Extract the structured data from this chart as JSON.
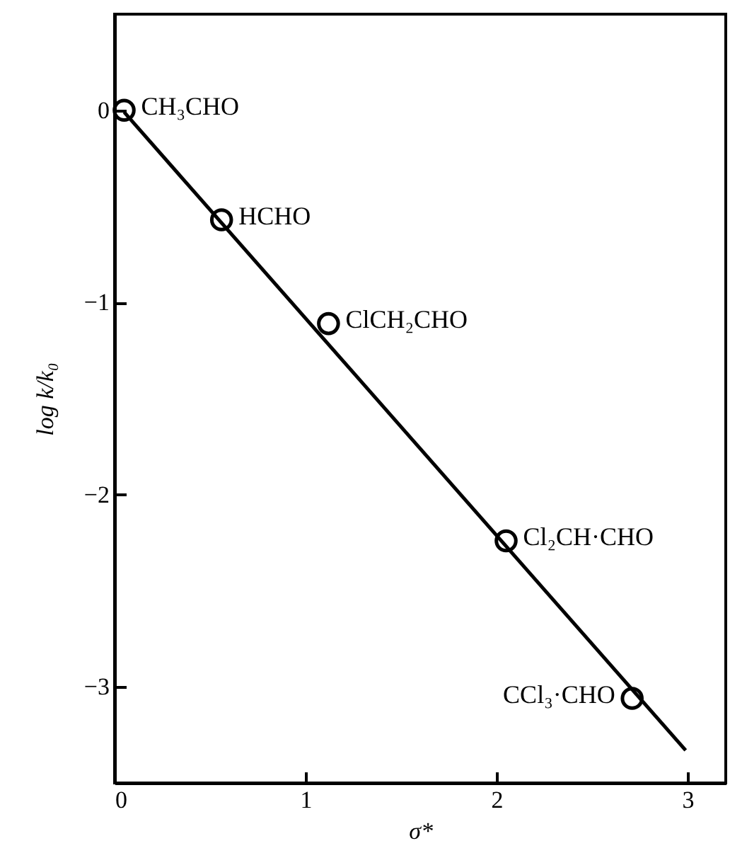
{
  "chart_data": {
    "type": "scatter",
    "xlabel": "σ*",
    "ylabel": "log k/k₀",
    "xlim": [
      0,
      3.2
    ],
    "ylim": [
      -3.5,
      0.5
    ],
    "xticks": [
      0,
      1,
      2,
      3
    ],
    "yticks": [
      0,
      -1,
      -2,
      -3
    ],
    "grid": false,
    "series": [
      {
        "color": "#000000",
        "marker": "circle",
        "x": [
          0.05,
          0.56,
          1.12,
          2.05,
          2.71
        ],
        "values": [
          0,
          -0.57,
          -1.11,
          -2.24,
          -3.06
        ]
      },
      {
        "type": "line",
        "color": "#000000",
        "line_style": "solid",
        "x": [
          0.05,
          2.99
        ],
        "values": [
          -0.01,
          -3.33
        ]
      }
    ],
    "annotations": [
      {
        "text": "CH₃CHO",
        "x": 0.05,
        "y": 0
      },
      {
        "text": "HCHO",
        "x": 0.56,
        "y": -0.57
      },
      {
        "text": "ClCH₂CHO",
        "x": 1.12,
        "y": -1.11
      },
      {
        "text": "Cl₂CH·CHO",
        "x": 2.05,
        "y": -2.24
      },
      {
        "text": "CCl₃·CHO",
        "x": 2.71,
        "y": -3.06
      }
    ]
  }
}
